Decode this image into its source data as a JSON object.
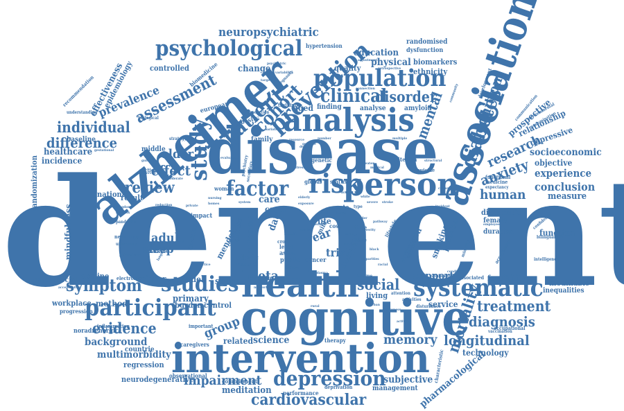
{
  "colors": {
    "word": "#3f74ab",
    "background": "#ffffff"
  },
  "words": [
    {
      "text": "dementia"
    },
    {
      "text": "disease"
    },
    {
      "text": "alzheimer"
    },
    {
      "text": "cognitive"
    },
    {
      "text": "intervention"
    },
    {
      "text": "association"
    },
    {
      "text": "health"
    },
    {
      "text": "person"
    },
    {
      "text": "analysis"
    },
    {
      "text": "population"
    },
    {
      "text": "participant"
    },
    {
      "text": "systematic"
    },
    {
      "text": "studies"
    },
    {
      "text": "prevention"
    },
    {
      "text": "patient"
    },
    {
      "text": "psychological"
    },
    {
      "text": "depression"
    },
    {
      "text": "study"
    },
    {
      "text": "risk"
    },
    {
      "text": "factor"
    },
    {
      "text": "diabetes"
    },
    {
      "text": "cohort"
    },
    {
      "text": "clinical"
    },
    {
      "text": "cardiovascular"
    },
    {
      "text": "symptom"
    },
    {
      "text": "review"
    },
    {
      "text": "individual"
    },
    {
      "text": "assessment"
    },
    {
      "text": "difference"
    },
    {
      "text": "treatment"
    },
    {
      "text": "diagnosis"
    },
    {
      "text": "longitudinal"
    },
    {
      "text": "evidence"
    },
    {
      "text": "impairment"
    },
    {
      "text": "memory"
    },
    {
      "text": "social"
    },
    {
      "text": "mortality"
    },
    {
      "text": "neuropsychiatric"
    },
    {
      "text": "research"
    },
    {
      "text": "anxiety"
    },
    {
      "text": "human"
    },
    {
      "text": "conclusion"
    },
    {
      "text": "experience"
    },
    {
      "text": "disorder"
    },
    {
      "text": "mental"
    },
    {
      "text": "cognition"
    },
    {
      "text": "effect"
    },
    {
      "text": "older"
    },
    {
      "text": "adult"
    },
    {
      "text": "sleep"
    },
    {
      "text": "prevalence"
    },
    {
      "text": "healthcare"
    },
    {
      "text": "incidence"
    },
    {
      "text": "background"
    },
    {
      "text": "group"
    },
    {
      "text": "science"
    },
    {
      "text": "meta"
    },
    {
      "text": "support"
    },
    {
      "text": "technology"
    },
    {
      "text": "subjective"
    },
    {
      "text": "meditation"
    },
    {
      "text": "multimorbidity"
    },
    {
      "text": "regression"
    },
    {
      "text": "neurodegenerative"
    },
    {
      "text": "primary"
    },
    {
      "text": "pharmacological"
    },
    {
      "text": "socioeconomic"
    },
    {
      "text": "objective"
    },
    {
      "text": "relationship"
    },
    {
      "text": "prospective"
    },
    {
      "text": "depressive"
    },
    {
      "text": "measure"
    },
    {
      "text": "function"
    },
    {
      "text": "modifiable"
    },
    {
      "text": "inequalities"
    },
    {
      "text": "feasibility"
    },
    {
      "text": "diagnostic"
    },
    {
      "text": "female"
    },
    {
      "text": "duration"
    },
    {
      "text": "potential"
    },
    {
      "text": "smoking"
    },
    {
      "text": "agitation"
    },
    {
      "text": "year"
    },
    {
      "text": "trial"
    },
    {
      "text": "hospital"
    },
    {
      "text": "care"
    },
    {
      "text": "carer"
    },
    {
      "text": "data"
    },
    {
      "text": "outcome"
    },
    {
      "text": "mendelian"
    },
    {
      "text": "life"
    },
    {
      "text": "score"
    },
    {
      "text": "decline"
    },
    {
      "text": "model"
    },
    {
      "text": "higher"
    },
    {
      "text": "method"
    },
    {
      "text": "workplace"
    },
    {
      "text": "burden"
    },
    {
      "text": "control"
    },
    {
      "text": "related"
    },
    {
      "text": "service"
    },
    {
      "text": "living"
    },
    {
      "text": "specific"
    },
    {
      "text": "result"
    },
    {
      "text": "national"
    },
    {
      "text": "mindfulness"
    },
    {
      "text": "randomization"
    },
    {
      "text": "baseline"
    },
    {
      "text": "middle"
    },
    {
      "text": "effectiveness"
    },
    {
      "text": "epidemiology"
    },
    {
      "text": "controlled"
    },
    {
      "text": "change"
    },
    {
      "text": "quality"
    },
    {
      "text": "education"
    },
    {
      "text": "physical"
    },
    {
      "text": "ethnicity"
    },
    {
      "text": "biomarkers"
    },
    {
      "text": "randomised"
    },
    {
      "text": "hypertension"
    },
    {
      "text": "dysfunction"
    },
    {
      "text": "aged"
    },
    {
      "text": "finding"
    },
    {
      "text": "analyse"
    },
    {
      "text": "amyloid"
    },
    {
      "text": "family"
    },
    {
      "text": "ethnic"
    },
    {
      "text": "record"
    },
    {
      "text": "public"
    },
    {
      "text": "asian"
    },
    {
      "text": "cancer"
    },
    {
      "text": "performance"
    },
    {
      "text": "deprivation"
    },
    {
      "text": "management"
    },
    {
      "text": "commitment"
    },
    {
      "text": "observational"
    },
    {
      "text": "caregivers"
    },
    {
      "text": "countrie"
    },
    {
      "text": "noradrenergic"
    },
    {
      "text": "inflammation"
    },
    {
      "text": "progression"
    },
    {
      "text": "psychosocial"
    },
    {
      "text": "electronic"
    },
    {
      "text": "neurology"
    },
    {
      "text": "examine"
    },
    {
      "text": "disability"
    },
    {
      "text": "glucose"
    },
    {
      "text": "university"
    },
    {
      "text": "behaviour"
    },
    {
      "text": "impact"
    },
    {
      "text": "pandemic"
    },
    {
      "text": "mild"
    },
    {
      "text": "rate"
    },
    {
      "text": "time"
    },
    {
      "text": "more"
    },
    {
      "text": "cost"
    },
    {
      "text": "recommendation"
    },
    {
      "text": "understanding"
    },
    {
      "text": "biological"
    },
    {
      "text": "european"
    },
    {
      "text": "obesity"
    },
    {
      "text": "prediction"
    },
    {
      "text": "biomedicine"
    },
    {
      "text": "training"
    },
    {
      "text": "pregnancy"
    },
    {
      "text": "strategy"
    },
    {
      "text": "genetic"
    },
    {
      "text": "development"
    },
    {
      "text": "communication"
    },
    {
      "text": "environmental"
    },
    {
      "text": "randomisation"
    },
    {
      "text": "sectional"
    },
    {
      "text": "woman"
    },
    {
      "text": "important"
    },
    {
      "text": "global"
    },
    {
      "text": "status"
    },
    {
      "text": "criterion"
    },
    {
      "text": "suicide"
    },
    {
      "text": "functional"
    },
    {
      "text": "medicine"
    },
    {
      "text": "expectancy"
    },
    {
      "text": "acceptance"
    },
    {
      "text": "intelligence"
    },
    {
      "text": "bilingualism"
    },
    {
      "text": "confidence"
    },
    {
      "text": "occupational"
    },
    {
      "text": "vaccination"
    },
    {
      "text": "characteristic"
    },
    {
      "text": "minority"
    },
    {
      "text": "associated"
    },
    {
      "text": "activities"
    },
    {
      "text": "disturbance"
    },
    {
      "text": "attention"
    },
    {
      "text": "validation"
    },
    {
      "text": "income"
    },
    {
      "text": "therapy"
    },
    {
      "text": "psychiatry"
    },
    {
      "text": "secondary"
    },
    {
      "text": "adjustment"
    },
    {
      "text": "psychiatric"
    },
    {
      "text": "variability"
    },
    {
      "text": "retrospective"
    },
    {
      "text": "connection"
    },
    {
      "text": "community"
    },
    {
      "text": "cultural"
    },
    {
      "text": "incident"
    },
    {
      "text": "employee"
    },
    {
      "text": "condition"
    },
    {
      "text": "white"
    },
    {
      "text": "severe"
    },
    {
      "text": "stroke"
    },
    {
      "text": "black"
    },
    {
      "text": "guideline"
    },
    {
      "text": "observed"
    },
    {
      "text": "moderate"
    },
    {
      "text": "kingdom"
    },
    {
      "text": "biobank"
    },
    {
      "text": "nursing"
    },
    {
      "text": "gestational"
    },
    {
      "text": "reduction"
    },
    {
      "text": "private"
    },
    {
      "text": "acceptability"
    },
    {
      "text": "network"
    },
    {
      "text": "target"
    },
    {
      "text": "bariatric"
    },
    {
      "text": "genome"
    },
    {
      "text": "language"
    },
    {
      "text": "practice"
    },
    {
      "text": "future"
    },
    {
      "text": "increase"
    },
    {
      "text": "general"
    },
    {
      "text": "lifestyle"
    },
    {
      "text": "level"
    },
    {
      "text": "cross"
    },
    {
      "text": "coping"
    },
    {
      "text": "resource"
    },
    {
      "text": "number"
    },
    {
      "text": "design"
    },
    {
      "text": "multiple"
    },
    {
      "text": "greater"
    },
    {
      "text": "medical"
    },
    {
      "text": "structural"
    },
    {
      "text": "evaluation"
    },
    {
      "text": "stress"
    },
    {
      "text": "brain"
    },
    {
      "text": "elderly"
    },
    {
      "text": "exposure"
    },
    {
      "text": "gender"
    },
    {
      "text": "ageing"
    },
    {
      "text": "system"
    },
    {
      "text": "english"
    },
    {
      "text": "marker"
    },
    {
      "text": "pathway"
    },
    {
      "text": "scale"
    },
    {
      "text": "frailty"
    },
    {
      "text": "benefit"
    },
    {
      "text": "severity"
    },
    {
      "text": "self"
    },
    {
      "text": "type"
    },
    {
      "text": "death"
    },
    {
      "text": "disparities"
    },
    {
      "text": "racial"
    },
    {
      "text": "plasma"
    },
    {
      "text": "rural"
    },
    {
      "text": "urban"
    },
    {
      "text": "awareness"
    },
    {
      "text": "delirium"
    },
    {
      "text": "homes"
    },
    {
      "text": "activity"
    }
  ]
}
